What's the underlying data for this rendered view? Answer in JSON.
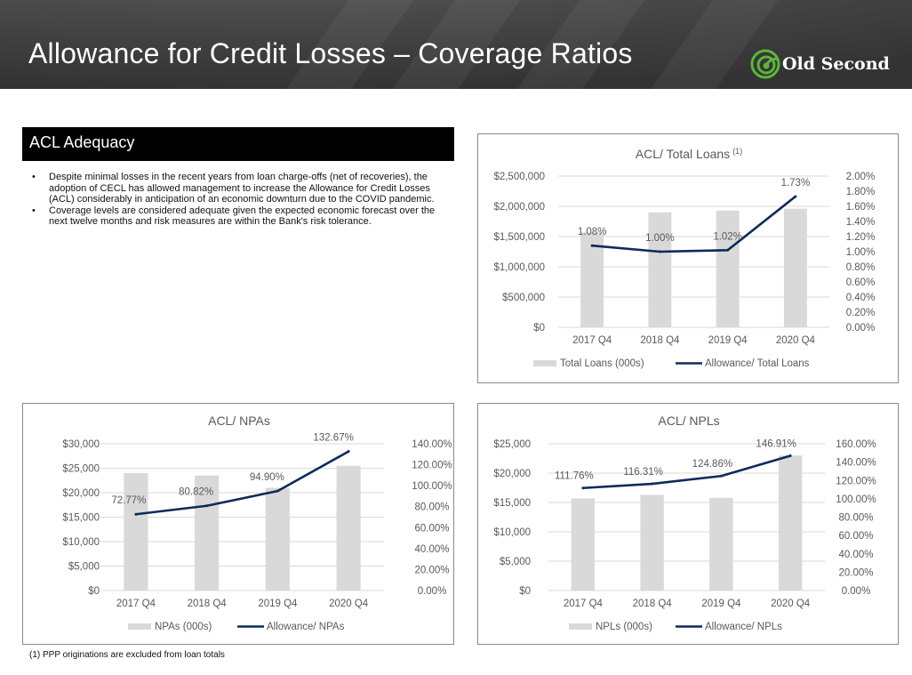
{
  "header": {
    "title": "Allowance for Credit Losses – Coverage Ratios"
  },
  "logo": {
    "text": "Old Second",
    "icon": "leaf-swirl-icon",
    "color": "#5db53a"
  },
  "section": {
    "title": "ACL Adequacy",
    "bullets": [
      "Despite minimal losses in the recent years from loan charge-offs (net of recoveries), the adoption of CECL has allowed management to increase the Allowance for Credit Losses (ACL) considerably in anticipation of an economic downturn due to the COVID pandemic.",
      "Coverage levels are considered adequate given the expected economic forecast over the next twelve months and risk measures are within the Bank's risk tolerance."
    ]
  },
  "footnote": "(1) PPP originations are excluded from loan totals",
  "colors": {
    "bar": "#d9d9d9",
    "line": "#0e2a5a",
    "text": "#595959",
    "grid": "#d9d9d9"
  },
  "chart_data": [
    {
      "type": "bar",
      "title": "ACL/ Total Loans",
      "title_sup": "(1)",
      "categories": [
        "2017 Q4",
        "2018 Q4",
        "2019 Q4",
        "2020 Q4"
      ],
      "series": [
        {
          "name": "Total Loans (000s)",
          "type": "bar",
          "axis": "left",
          "values": [
            1570000,
            1900000,
            1930000,
            1960000
          ]
        },
        {
          "name": "Allowance/ Total Loans",
          "type": "line",
          "axis": "right",
          "values": [
            1.08,
            1.0,
            1.02,
            1.73
          ],
          "labels": [
            "1.08%",
            "1.00%",
            "1.02%",
            "1.73%"
          ]
        }
      ],
      "y_left": {
        "min": 0,
        "max": 2500000,
        "step": 500000,
        "ticks": [
          "$0",
          "$500,000",
          "$1,000,000",
          "$1,500,000",
          "$2,000,000",
          "$2,500,000"
        ]
      },
      "y_right": {
        "min": 0,
        "max": 2.0,
        "step": 0.2,
        "ticks": [
          "0.00%",
          "0.20%",
          "0.40%",
          "0.60%",
          "0.80%",
          "1.00%",
          "1.20%",
          "1.40%",
          "1.60%",
          "1.80%",
          "2.00%"
        ]
      },
      "legend": "bottom",
      "grid": true
    },
    {
      "type": "bar",
      "title": "ACL/ NPAs",
      "title_sup": "",
      "categories": [
        "2017 Q4",
        "2018 Q4",
        "2019 Q4",
        "2020 Q4"
      ],
      "series": [
        {
          "name": "NPAs (000s)",
          "type": "bar",
          "axis": "left",
          "values": [
            24000,
            23500,
            21000,
            25500
          ]
        },
        {
          "name": "Allowance/ NPAs",
          "type": "line",
          "axis": "right",
          "values": [
            72.77,
            80.82,
            94.9,
            132.67
          ],
          "labels": [
            "72.77%",
            "80.82%",
            "94.90%",
            "132.67%"
          ]
        }
      ],
      "y_left": {
        "min": 0,
        "max": 30000,
        "step": 5000,
        "ticks": [
          "$0",
          "$5,000",
          "$10,000",
          "$15,000",
          "$20,000",
          "$25,000",
          "$30,000"
        ]
      },
      "y_right": {
        "min": 0,
        "max": 140,
        "step": 20,
        "ticks": [
          "0.00%",
          "20.00%",
          "40.00%",
          "60.00%",
          "80.00%",
          "100.00%",
          "120.00%",
          "140.00%"
        ]
      },
      "legend": "bottom",
      "grid": true
    },
    {
      "type": "bar",
      "title": "ACL/ NPLs",
      "title_sup": "",
      "categories": [
        "2017 Q4",
        "2018 Q4",
        "2019 Q4",
        "2020 Q4"
      ],
      "series": [
        {
          "name": "NPLs (000s)",
          "type": "bar",
          "axis": "left",
          "values": [
            15700,
            16300,
            15800,
            23000
          ]
        },
        {
          "name": "Allowance/ NPLs",
          "type": "line",
          "axis": "right",
          "values": [
            111.76,
            116.31,
            124.86,
            146.91
          ],
          "labels": [
            "111.76%",
            "116.31%",
            "124.86%",
            "146.91%"
          ]
        }
      ],
      "y_left": {
        "min": 0,
        "max": 25000,
        "step": 5000,
        "ticks": [
          "$0",
          "$5,000",
          "$10,000",
          "$15,000",
          "$20,000",
          "$25,000"
        ]
      },
      "y_right": {
        "min": 0,
        "max": 160,
        "step": 20,
        "ticks": [
          "0.00%",
          "20.00%",
          "40.00%",
          "60.00%",
          "80.00%",
          "100.00%",
          "120.00%",
          "140.00%",
          "160.00%"
        ]
      },
      "legend": "bottom",
      "grid": true
    }
  ]
}
